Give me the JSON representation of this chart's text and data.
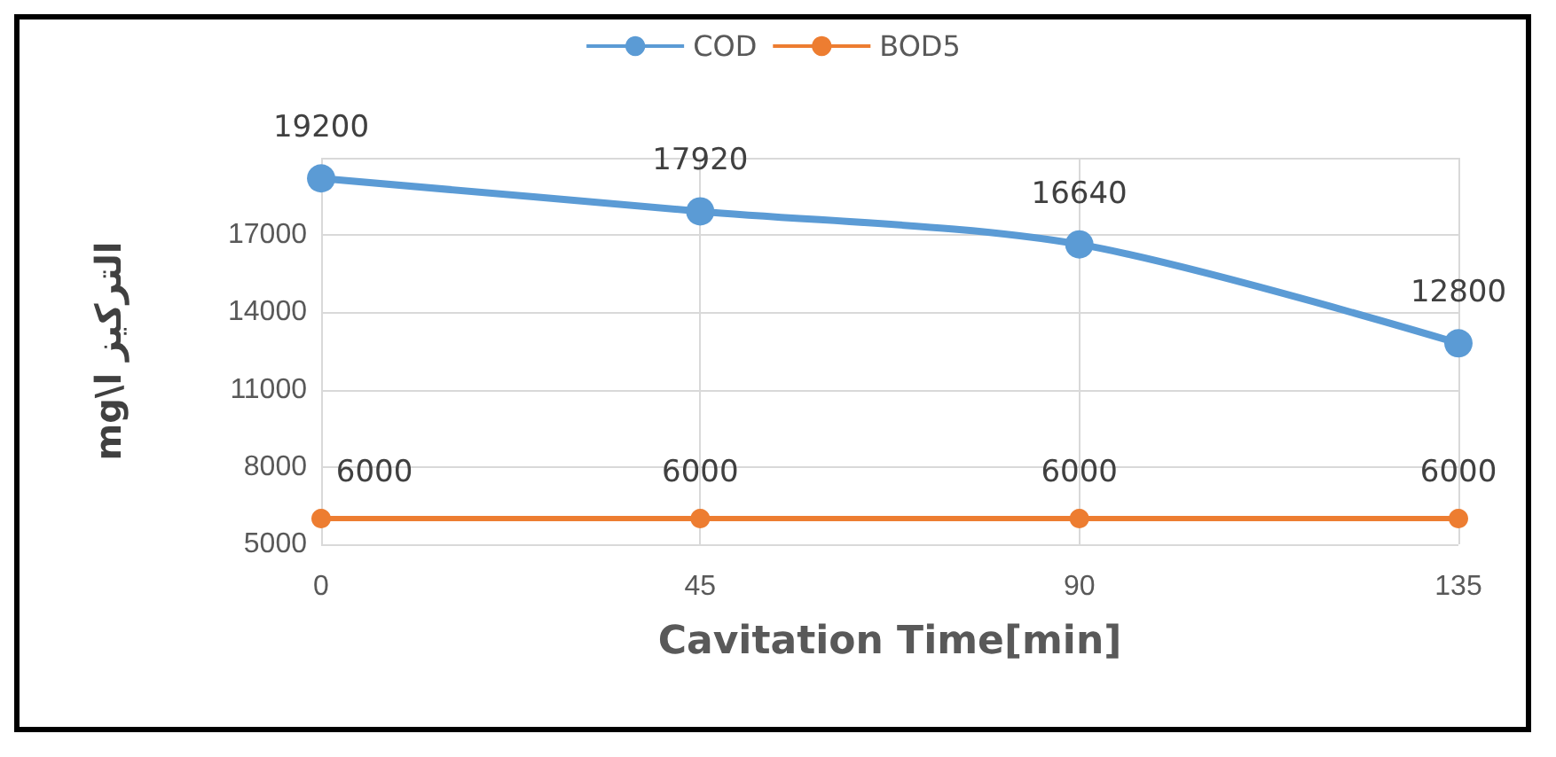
{
  "chart_data": {
    "type": "line",
    "xlabel": "Cavitation Time[min]",
    "ylabel": "mg\\l التركيز",
    "categories": [
      "0",
      "45",
      "90",
      "135"
    ],
    "series": [
      {
        "name": "COD",
        "color": "#5b9bd5",
        "values": [
          19200,
          17920,
          16640,
          12800
        ]
      },
      {
        "name": "BOD5",
        "color": "#ed7d31",
        "values": [
          6000,
          6000,
          6000,
          6000
        ]
      }
    ],
    "ylim": [
      5000,
      20000
    ],
    "yticks": [
      5000,
      8000,
      11000,
      14000,
      17000,
      {
        "value": 20000,
        "label": null
      }
    ],
    "grid": true,
    "legend": "top",
    "marker": "circle",
    "data_labels": true
  }
}
